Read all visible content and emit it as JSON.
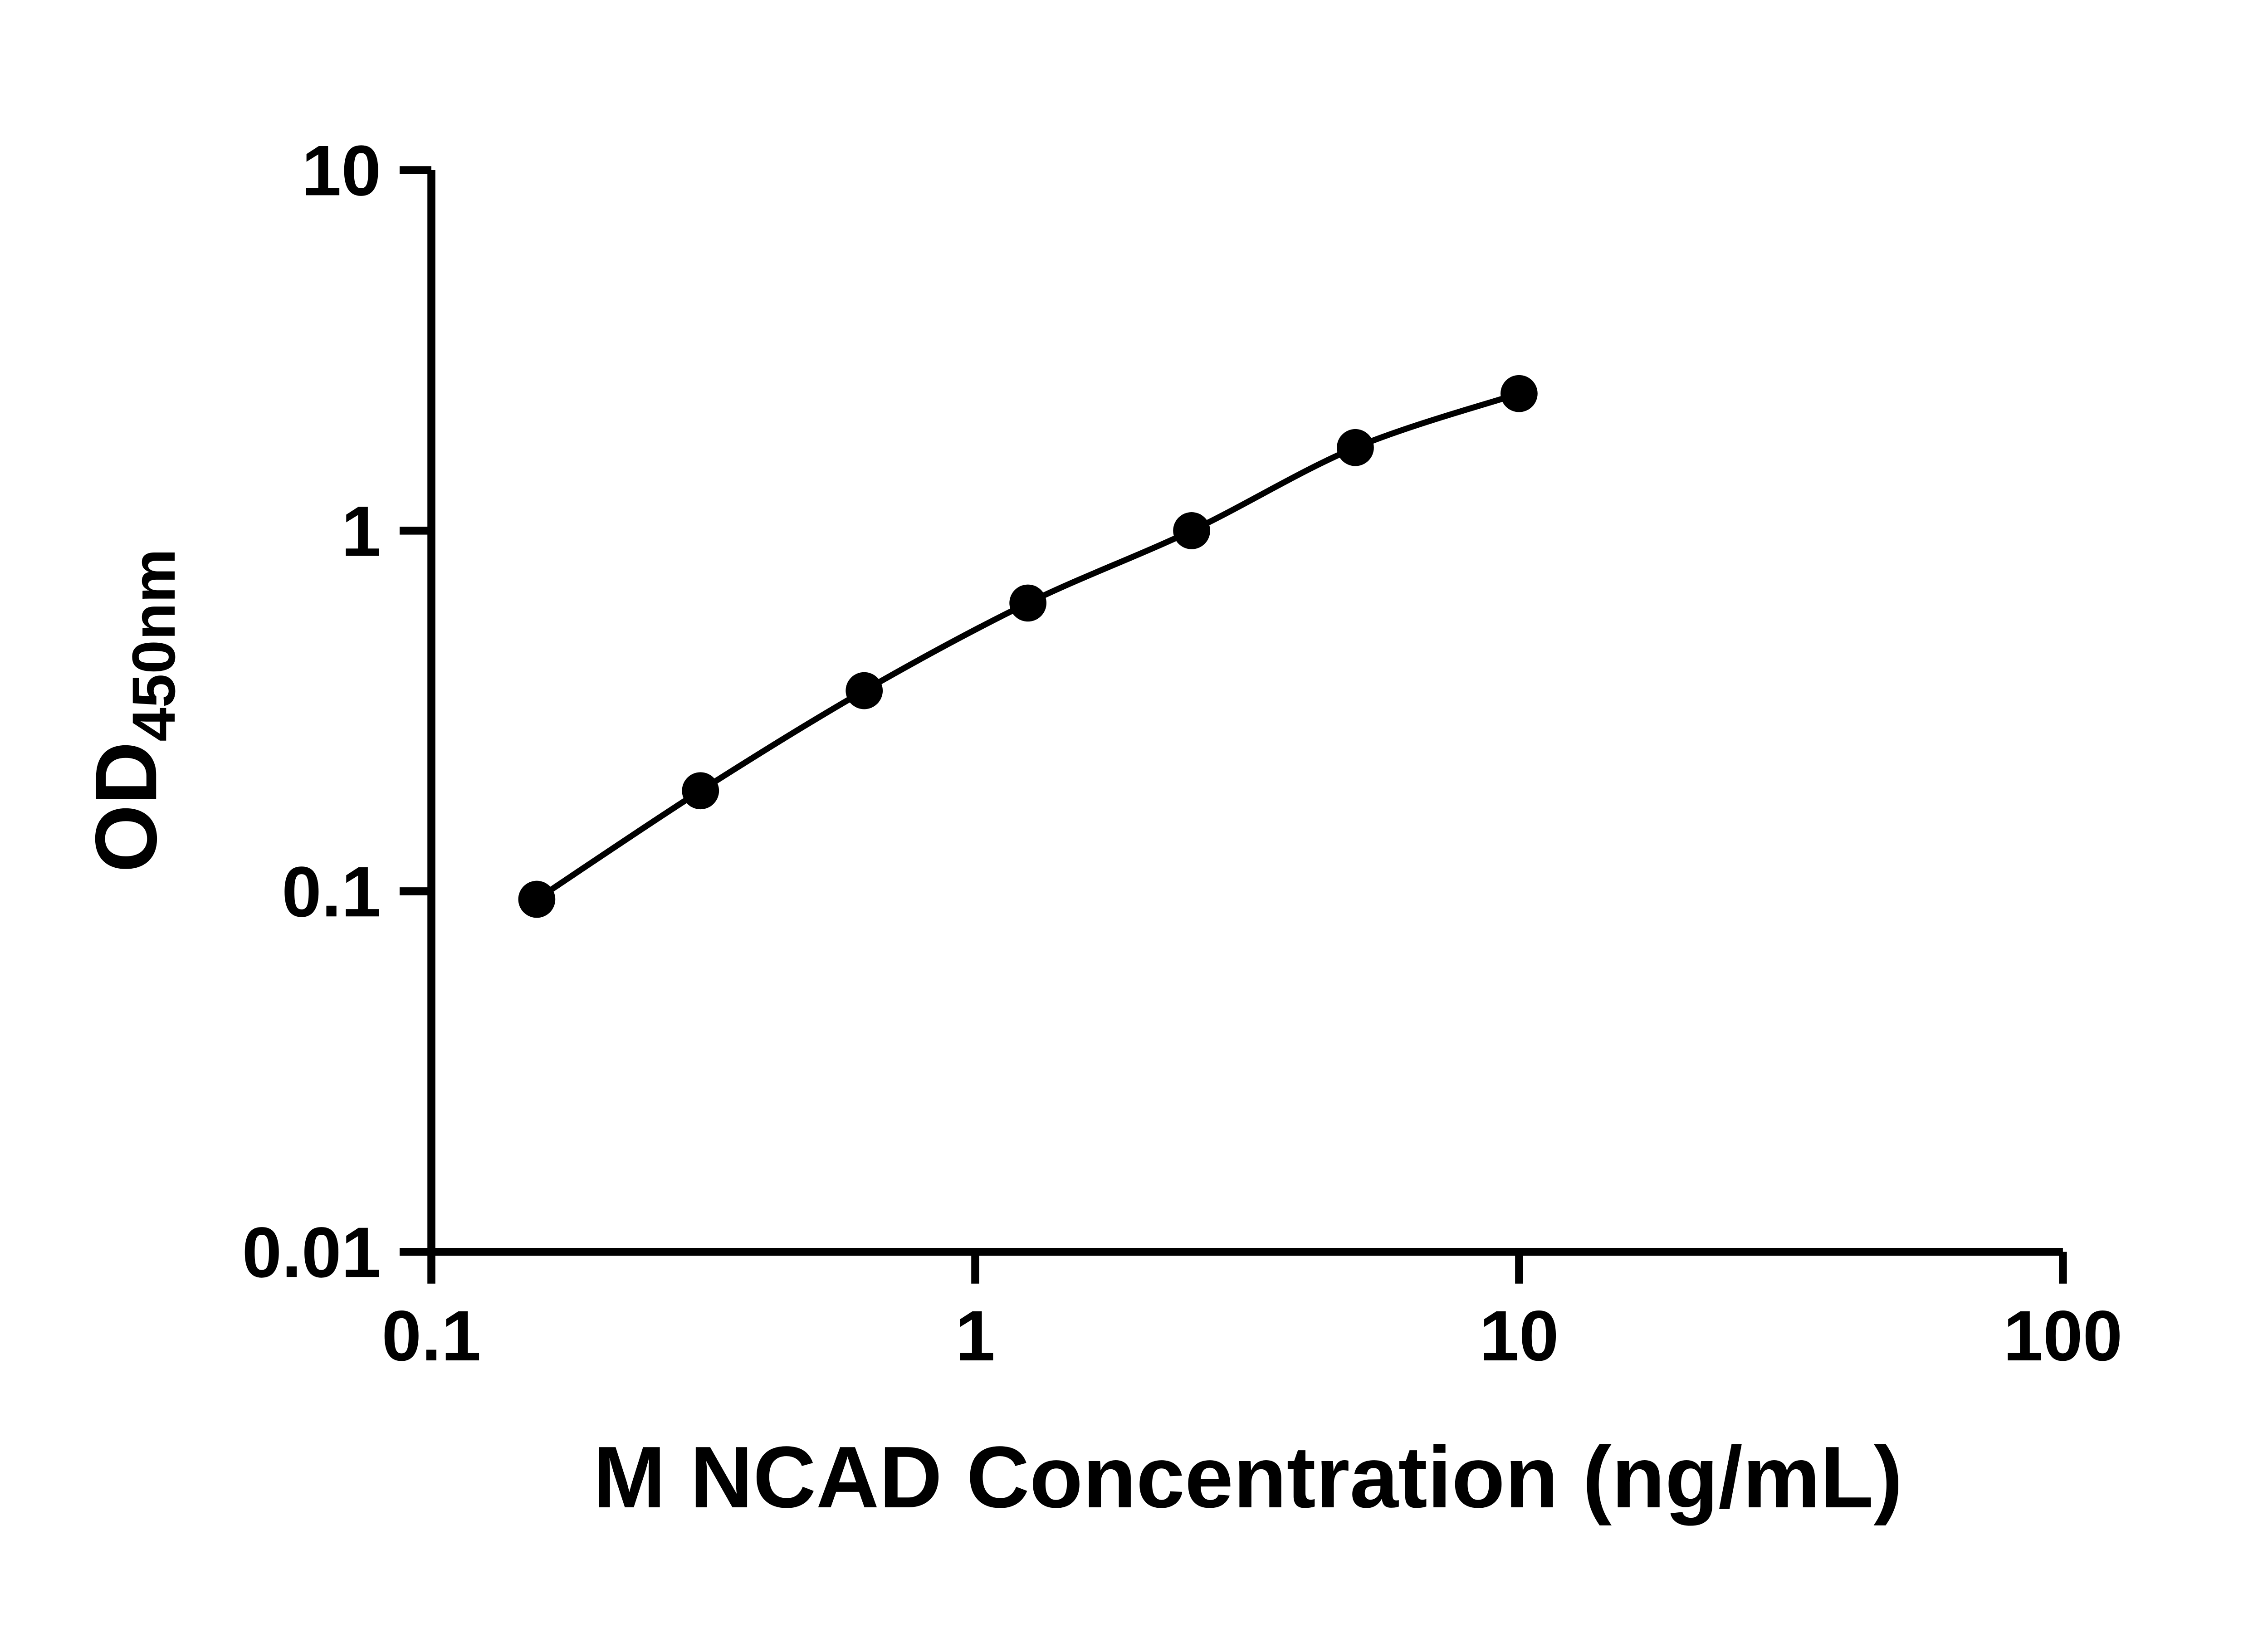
{
  "chart_data": {
    "type": "scatter",
    "title": "",
    "xlabel": "M NCAD Concentration (ng/mL)",
    "ylabel_main": "OD",
    "ylabel_sub": "450nm",
    "x_scale": "log",
    "y_scale": "log",
    "xlim": [
      0.1,
      100
    ],
    "ylim": [
      0.01,
      10
    ],
    "grid": false,
    "legend": null,
    "marker_color": "#000000",
    "line_color": "#000000",
    "x": [
      0.15625,
      0.3125,
      0.625,
      1.25,
      2.5,
      5,
      10
    ],
    "y": [
      0.095,
      0.19,
      0.36,
      0.63,
      1.0,
      1.7,
      2.4
    ],
    "x_ticks": [
      {
        "value": 0.1,
        "label": "0.1"
      },
      {
        "value": 1,
        "label": "1"
      },
      {
        "value": 10,
        "label": "10"
      },
      {
        "value": 100,
        "label": "100"
      }
    ],
    "y_ticks": [
      {
        "value": 0.01,
        "label": "0.01"
      },
      {
        "value": 0.1,
        "label": "0.1"
      },
      {
        "value": 1,
        "label": "1"
      },
      {
        "value": 10,
        "label": "10"
      }
    ]
  }
}
